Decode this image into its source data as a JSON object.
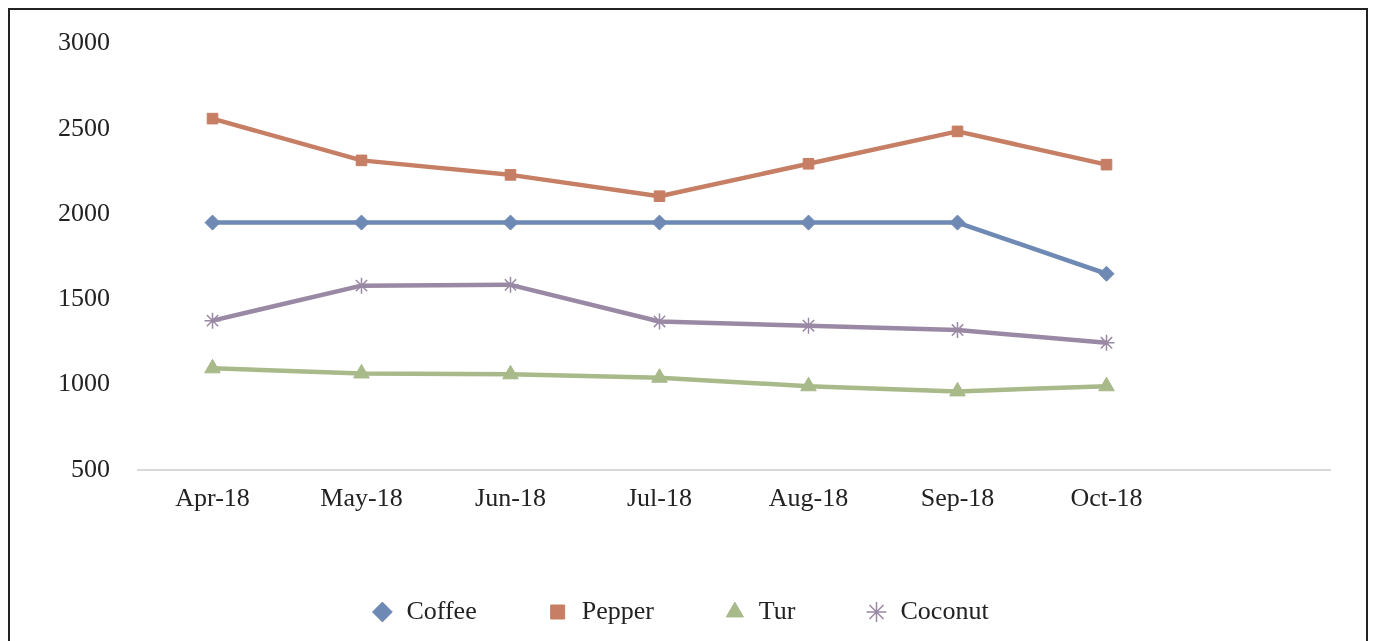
{
  "chart_data": {
    "type": "line",
    "categories": [
      "Apr-18",
      "May-18",
      "Jun-18",
      "Jul-18",
      "Aug-18",
      "Sep-18",
      "Oct-18",
      null
    ],
    "series": [
      {
        "name": "Coffee",
        "color": "#6e89b3",
        "marker": "diamond",
        "values": [
          1950,
          1950,
          1950,
          1950,
          1950,
          1950,
          1650,
          null
        ]
      },
      {
        "name": "Pepper",
        "color": "#c67f65",
        "marker": "square",
        "values": [
          2560,
          2315,
          2230,
          2105,
          2295,
          2485,
          2290,
          null
        ]
      },
      {
        "name": "Tur",
        "color": "#a8b98a",
        "marker": "triangle",
        "values": [
          1095,
          1065,
          1060,
          1040,
          990,
          960,
          990,
          null
        ]
      },
      {
        "name": "Coconut",
        "color": "#9a89a4",
        "marker": "cross",
        "values": [
          1375,
          1580,
          1585,
          1370,
          1345,
          1320,
          1245,
          null
        ]
      }
    ],
    "ylim": [
      500,
      3000
    ],
    "yticks": [
      500,
      1000,
      1500,
      2000,
      2500,
      3000
    ],
    "grid": false,
    "legend": "bottom"
  }
}
